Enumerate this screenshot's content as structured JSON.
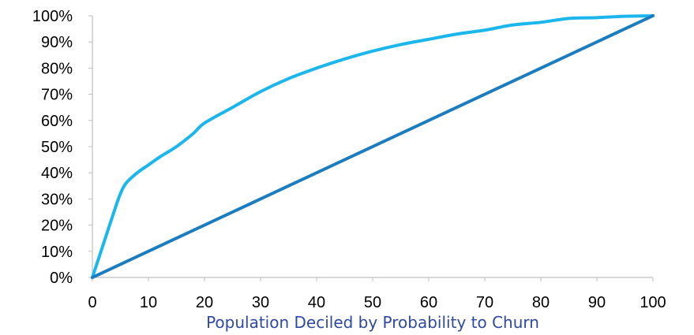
{
  "chart_data": {
    "type": "line",
    "title": "",
    "xlabel": "Population Deciled by Probability to Churn",
    "ylabel": "",
    "xlim": [
      0,
      100
    ],
    "ylim": [
      0,
      100
    ],
    "x_ticks": [
      0,
      10,
      20,
      30,
      40,
      50,
      60,
      70,
      80,
      90,
      100
    ],
    "x_tick_labels": [
      "0",
      "10",
      "20",
      "30",
      "40",
      "50",
      "60",
      "70",
      "80",
      "90",
      "100"
    ],
    "y_ticks": [
      0,
      10,
      20,
      30,
      40,
      50,
      60,
      70,
      80,
      90,
      100
    ],
    "y_tick_labels": [
      "0%",
      "10%",
      "20%",
      "30%",
      "40%",
      "50%",
      "60%",
      "70%",
      "80%",
      "90%",
      "100%"
    ],
    "grid": false,
    "legend": "none",
    "series": [
      {
        "color": "#1ab6ec",
        "x": [
          0,
          2,
          4,
          5,
          6,
          8,
          10,
          12,
          15,
          18,
          20,
          25,
          30,
          35,
          40,
          45,
          50,
          55,
          60,
          65,
          70,
          75,
          80,
          85,
          90,
          95,
          100
        ],
        "y": [
          0,
          13,
          26,
          32,
          36,
          40,
          43,
          46,
          50,
          55,
          59,
          65,
          71,
          76,
          80,
          83.5,
          86.5,
          89,
          91,
          93,
          94.5,
          96.5,
          97.5,
          99,
          99.3,
          99.8,
          100
        ]
      },
      {
        "color": "#1b7dbf",
        "x": [
          0,
          100
        ],
        "y": [
          0,
          100
        ]
      }
    ],
    "colors": {
      "axis": "#bfbfbf",
      "xlabel": "#2e4aa0"
    }
  }
}
